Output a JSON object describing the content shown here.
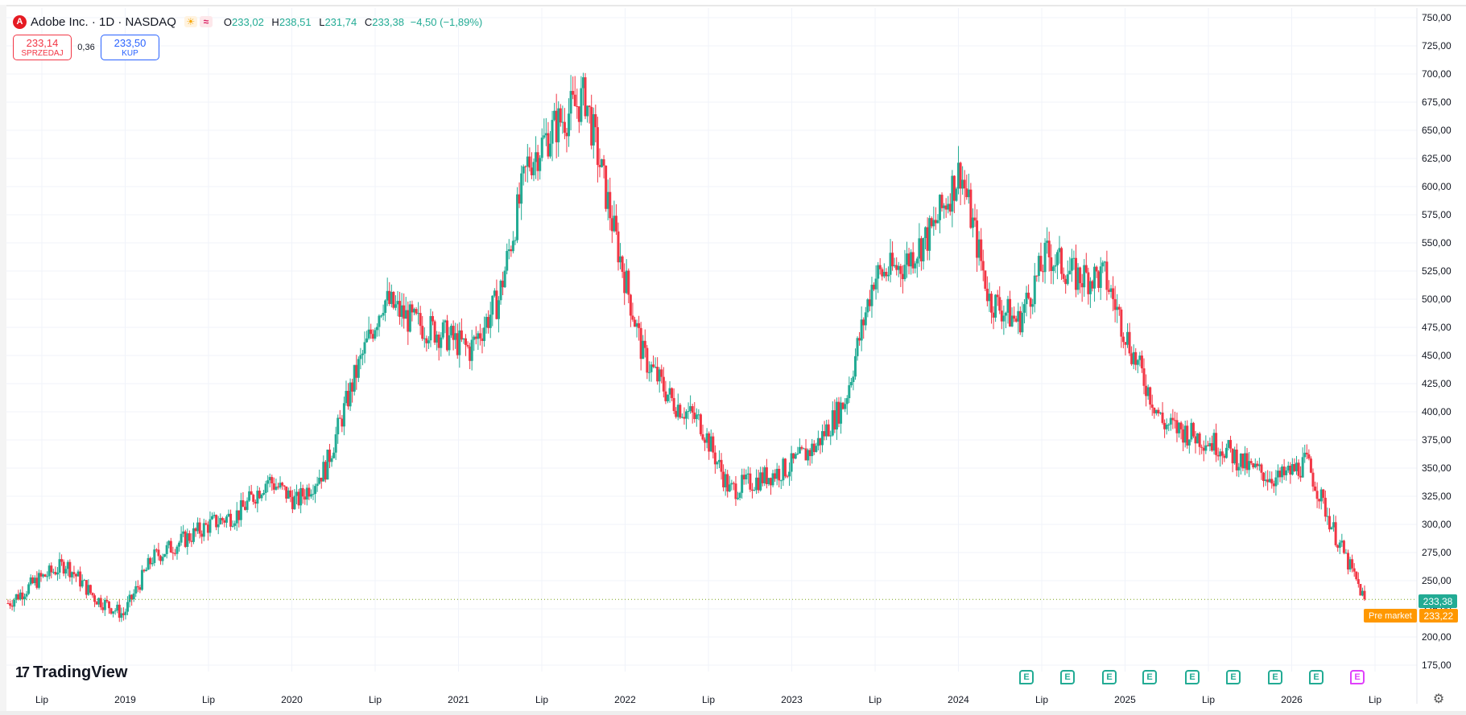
{
  "header": {
    "title": "Adobe Inc. · 1D · NASDAQ",
    "open_label": "O",
    "open": "233,02",
    "high_label": "H",
    "high": "238,51",
    "low_label": "L",
    "low": "231,74",
    "close_label": "C",
    "close": "233,38",
    "change": "−4,50 (−1,89%)"
  },
  "quote": {
    "sell_price": "233,14",
    "sell_label": "SPRZEDAJ",
    "spread": "0,36",
    "buy_price": "233,50",
    "buy_label": "KUP"
  },
  "brand": {
    "name": "TradingView"
  },
  "price_tags": {
    "last": "233,38",
    "premarket_label": "Pre market",
    "premarket": "233,22"
  },
  "colors": {
    "up": "#22ab94",
    "down": "#f23645",
    "premarket": "#ff9800",
    "grid": "#f0f3fa",
    "last_line": "#7aa31a"
  },
  "icons": [
    "company-logo-icon",
    "sun-icon",
    "wave-icon",
    "tradingview-logo-icon",
    "earnings-icon",
    "settings-icon"
  ],
  "events": {
    "label": "E",
    "count": 9,
    "future_count": 1
  },
  "chart_data": {
    "type": "candlestick",
    "interval": "1D",
    "symbol": "Adobe Inc. · NASDAQ",
    "y_ticks": [
      "750,00",
      "725,00",
      "700,00",
      "675,00",
      "650,00",
      "625,00",
      "600,00",
      "575,00",
      "550,00",
      "525,00",
      "500,00",
      "475,00",
      "450,00",
      "425,00",
      "400,00",
      "375,00",
      "350,00",
      "325,00",
      "300,00",
      "275,00",
      "250,00",
      "225,00",
      "200,00",
      "175,00"
    ],
    "ylim": [
      175,
      750
    ],
    "x_ticks": [
      "Lip",
      "2019",
      "Lip",
      "2020",
      "Lip",
      "2021",
      "Lip",
      "2022",
      "Lip",
      "2023",
      "Lip",
      "2024",
      "Lip",
      "2025",
      "Lip",
      "2026",
      "Lip"
    ],
    "grid": true,
    "last_price": 233.38,
    "premarket_price": 233.22,
    "series": [
      {
        "time": [
          "2018-07",
          "2018-09",
          "2018-11",
          "2019-01",
          "2019-03",
          "2019-05",
          "2019-07",
          "2019-09",
          "2019-11",
          "2020-01",
          "2020-03",
          "2020-05",
          "2020-07",
          "2020-09",
          "2020-11",
          "2021-01",
          "2021-03",
          "2021-05",
          "2021-07",
          "2021-09",
          "2021-11",
          "2022-01",
          "2022-03",
          "2022-05",
          "2022-07",
          "2022-09",
          "2022-11",
          "2023-01",
          "2023-03",
          "2023-05",
          "2023-07",
          "2023-09",
          "2023-11",
          "2024-01",
          "2024-03",
          "2024-05",
          "2024-07",
          "2024-09",
          "2024-11",
          "2025-01",
          "2025-03",
          "2025-05",
          "2025-07",
          "2025-09",
          "2025-11",
          "2026-01",
          "2026-03",
          "2026-05"
        ],
        "close": [
          230,
          250,
          265,
          235,
          220,
          270,
          285,
          300,
          310,
          340,
          320,
          350,
          430,
          500,
          480,
          470,
          455,
          500,
          620,
          655,
          680,
          560,
          450,
          410,
          390,
          330,
          340,
          350,
          370,
          410,
          520,
          530,
          560,
          615,
          500,
          480,
          540,
          520,
          520,
          450,
          390,
          380,
          370,
          350,
          340,
          355,
          290,
          233.38
        ]
      }
    ]
  }
}
